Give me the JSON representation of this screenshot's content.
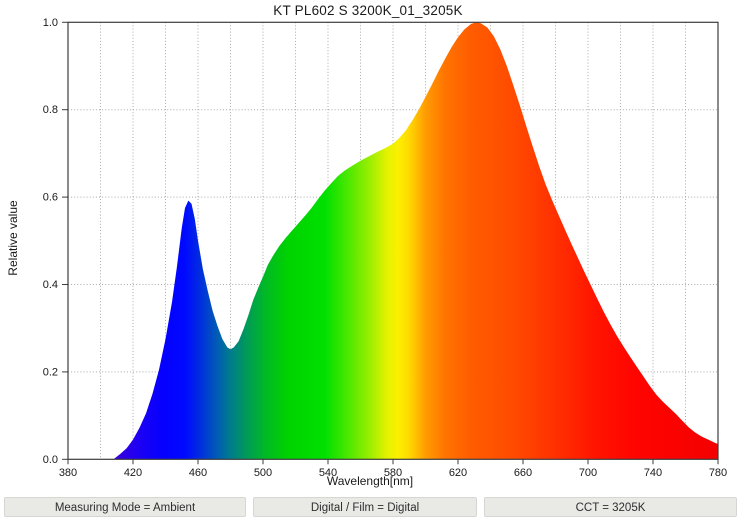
{
  "title": "KT PL602 S 3200K_01_3205K",
  "chart_data": {
    "type": "area",
    "title": "KT PL602 S 3200K_01_3205K",
    "xlabel": "Wavelength[nm]",
    "ylabel": "Relative value",
    "xlim": [
      380,
      780
    ],
    "ylim": [
      0,
      1
    ],
    "x_ticks": [
      "380",
      "420",
      "460",
      "500",
      "540",
      "580",
      "620",
      "660",
      "700",
      "740",
      "780"
    ],
    "y_ticks": [
      "0.0",
      "0.2",
      "0.4",
      "0.6",
      "0.8",
      "1.0"
    ],
    "x_minor_step": 20,
    "grid": "dotted",
    "legend": "none",
    "series_name": "relative spectral power",
    "points": [
      [
        408,
        0.0
      ],
      [
        412,
        0.012
      ],
      [
        416,
        0.025
      ],
      [
        420,
        0.045
      ],
      [
        424,
        0.072
      ],
      [
        428,
        0.105
      ],
      [
        432,
        0.15
      ],
      [
        436,
        0.205
      ],
      [
        440,
        0.275
      ],
      [
        444,
        0.36
      ],
      [
        447,
        0.44
      ],
      [
        450,
        0.53
      ],
      [
        452,
        0.575
      ],
      [
        454,
        0.592
      ],
      [
        456,
        0.585
      ],
      [
        458,
        0.55
      ],
      [
        460,
        0.5
      ],
      [
        463,
        0.435
      ],
      [
        466,
        0.385
      ],
      [
        469,
        0.34
      ],
      [
        472,
        0.305
      ],
      [
        475,
        0.275
      ],
      [
        478,
        0.256
      ],
      [
        480,
        0.252
      ],
      [
        482,
        0.256
      ],
      [
        485,
        0.27
      ],
      [
        488,
        0.298
      ],
      [
        491,
        0.33
      ],
      [
        494,
        0.365
      ],
      [
        497,
        0.392
      ],
      [
        500,
        0.418
      ],
      [
        503,
        0.445
      ],
      [
        506,
        0.465
      ],
      [
        510,
        0.488
      ],
      [
        514,
        0.507
      ],
      [
        518,
        0.524
      ],
      [
        522,
        0.541
      ],
      [
        526,
        0.558
      ],
      [
        530,
        0.576
      ],
      [
        534,
        0.596
      ],
      [
        538,
        0.615
      ],
      [
        542,
        0.632
      ],
      [
        546,
        0.648
      ],
      [
        550,
        0.66
      ],
      [
        555,
        0.672
      ],
      [
        560,
        0.683
      ],
      [
        565,
        0.693
      ],
      [
        570,
        0.703
      ],
      [
        575,
        0.712
      ],
      [
        580,
        0.722
      ],
      [
        584,
        0.736
      ],
      [
        588,
        0.753
      ],
      [
        592,
        0.776
      ],
      [
        596,
        0.801
      ],
      [
        600,
        0.829
      ],
      [
        604,
        0.858
      ],
      [
        608,
        0.888
      ],
      [
        612,
        0.916
      ],
      [
        616,
        0.943
      ],
      [
        620,
        0.966
      ],
      [
        624,
        0.984
      ],
      [
        628,
        0.996
      ],
      [
        631,
        1.0
      ],
      [
        634,
        0.998
      ],
      [
        638,
        0.988
      ],
      [
        642,
        0.968
      ],
      [
        646,
        0.938
      ],
      [
        650,
        0.9
      ],
      [
        654,
        0.856
      ],
      [
        658,
        0.81
      ],
      [
        662,
        0.762
      ],
      [
        666,
        0.715
      ],
      [
        670,
        0.67
      ],
      [
        674,
        0.628
      ],
      [
        678,
        0.592
      ],
      [
        682,
        0.558
      ],
      [
        686,
        0.524
      ],
      [
        690,
        0.491
      ],
      [
        694,
        0.459
      ],
      [
        698,
        0.427
      ],
      [
        702,
        0.396
      ],
      [
        706,
        0.365
      ],
      [
        710,
        0.335
      ],
      [
        714,
        0.307
      ],
      [
        718,
        0.281
      ],
      [
        722,
        0.257
      ],
      [
        726,
        0.234
      ],
      [
        730,
        0.212
      ],
      [
        734,
        0.19
      ],
      [
        738,
        0.168
      ],
      [
        742,
        0.148
      ],
      [
        746,
        0.132
      ],
      [
        750,
        0.118
      ],
      [
        754,
        0.104
      ],
      [
        758,
        0.088
      ],
      [
        762,
        0.073
      ],
      [
        766,
        0.061
      ],
      [
        770,
        0.052
      ],
      [
        774,
        0.045
      ],
      [
        778,
        0.038
      ],
      [
        780,
        0.035
      ]
    ],
    "spectrum_gradient": [
      {
        "wl": 380,
        "color": "#4400CC"
      },
      {
        "wl": 408,
        "color": "#3A00D8"
      },
      {
        "wl": 422,
        "color": "#2000F2"
      },
      {
        "wl": 438,
        "color": "#0500FF"
      },
      {
        "wl": 452,
        "color": "#0009FF"
      },
      {
        "wl": 462,
        "color": "#0031DC"
      },
      {
        "wl": 472,
        "color": "#005DB4"
      },
      {
        "wl": 480,
        "color": "#007C8C"
      },
      {
        "wl": 490,
        "color": "#009A58"
      },
      {
        "wl": 502,
        "color": "#00BA24"
      },
      {
        "wl": 515,
        "color": "#00D200"
      },
      {
        "wl": 538,
        "color": "#00E000"
      },
      {
        "wl": 552,
        "color": "#4AE800"
      },
      {
        "wl": 565,
        "color": "#96EE00"
      },
      {
        "wl": 576,
        "color": "#E2F200"
      },
      {
        "wl": 583,
        "color": "#FCF000"
      },
      {
        "wl": 590,
        "color": "#FFD800"
      },
      {
        "wl": 600,
        "color": "#FF9C00"
      },
      {
        "wl": 612,
        "color": "#FF7400"
      },
      {
        "wl": 628,
        "color": "#FF5C00"
      },
      {
        "wl": 655,
        "color": "#FF4A00"
      },
      {
        "wl": 680,
        "color": "#FF3000"
      },
      {
        "wl": 705,
        "color": "#FF1400"
      },
      {
        "wl": 730,
        "color": "#FF0400"
      },
      {
        "wl": 780,
        "color": "#F40000"
      }
    ],
    "colors": {
      "axis": "#3c3c3c",
      "grid": "#a9a9a9",
      "text": "#1a1a1a"
    }
  },
  "footer": {
    "segments": [
      {
        "label": "Measuring Mode = Ambient"
      },
      {
        "label": "Digital / Film = Digital"
      },
      {
        "label": "CCT = 3205K"
      }
    ]
  }
}
